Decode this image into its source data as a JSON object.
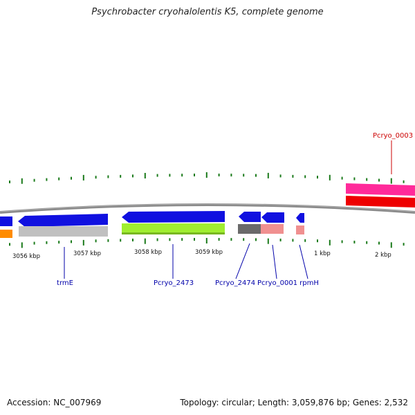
{
  "title": "Psychrobacter cryohalolentis K5, complete genome",
  "footer": {
    "accession": "Accession: NC_007969",
    "summary": "Topology: circular; Length: 3,059,876 bp; Genes: 2,532"
  },
  "colors": {
    "backbone": "#888888",
    "tick": "#1a7a1a",
    "label_blue": "#0000aa",
    "label_red": "#cc0000",
    "gene_blue": "#1010e0",
    "gene_orange": "#ff8c00",
    "gene_gray": "#c0c0c0",
    "gene_green": "#a0ee30",
    "gene_darkgray": "#6a6a6a",
    "gene_pink": "#f09090",
    "gene_magenta": "#ff2a9a",
    "gene_red": "#ee0000"
  },
  "scale_labels": [
    {
      "text": "3056 kbp",
      "kbp": 3056
    },
    {
      "text": "3057 kbp",
      "kbp": 3057
    },
    {
      "text": "3058 kbp",
      "kbp": 3058
    },
    {
      "text": "3059 kbp",
      "kbp": 3059
    },
    {
      "text": "1 kbp",
      "kbp": 1
    },
    {
      "text": "2 kbp",
      "kbp": 2
    }
  ],
  "gene_labels": [
    {
      "text": "trmE",
      "color": "label_blue"
    },
    {
      "text": "Pcryo_2473",
      "color": "label_blue"
    },
    {
      "text": "Pcryo_2474",
      "color": "label_blue"
    },
    {
      "text": "Pcryo_0001",
      "color": "label_blue"
    },
    {
      "text": "rpmH",
      "color": "label_blue"
    },
    {
      "text": "Pcryo_0003",
      "color": "label_red"
    }
  ]
}
